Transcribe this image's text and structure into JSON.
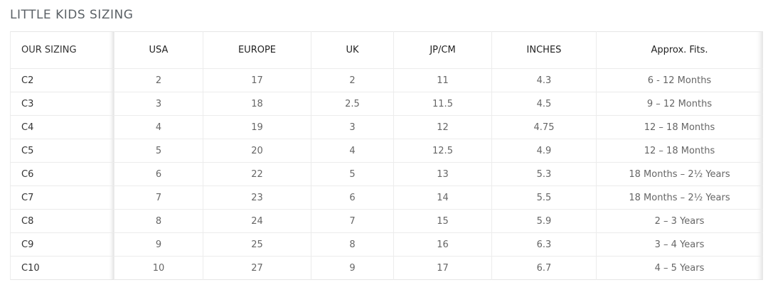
{
  "title": "LITTLE KIDS SIZING",
  "table": {
    "header": [
      "OUR SIZING",
      "USA",
      "EUROPE",
      "UK",
      "JP/CM",
      "INCHES",
      "Approx. Fits."
    ],
    "rows": [
      [
        "C2",
        "2",
        "17",
        "2",
        "11",
        "4.3",
        "6 - 12 Months"
      ],
      [
        "C3",
        "3",
        "18",
        "2.5",
        "11.5",
        "4.5",
        "9 – 12 Months"
      ],
      [
        "C4",
        "4",
        "19",
        "3",
        "12",
        "4.75",
        "12 – 18 Months"
      ],
      [
        "C5",
        "5",
        "20",
        "4",
        "12.5",
        "4.9",
        "12 – 18 Months"
      ],
      [
        "C6",
        "6",
        "22",
        "5",
        "13",
        "5.3",
        "18 Months – 2½ Years"
      ],
      [
        "C7",
        "7",
        "23",
        "6",
        "14",
        "5.5",
        "18 Months – 2½ Years"
      ],
      [
        "C8",
        "8",
        "24",
        "7",
        "15",
        "5.9",
        "2 – 3 Years"
      ],
      [
        "C9",
        "9",
        "25",
        "8",
        "16",
        "6.3",
        "3 – 4 Years"
      ],
      [
        "C10",
        "10",
        "27",
        "9",
        "17",
        "6.7",
        "4 – 5 Years"
      ]
    ]
  }
}
